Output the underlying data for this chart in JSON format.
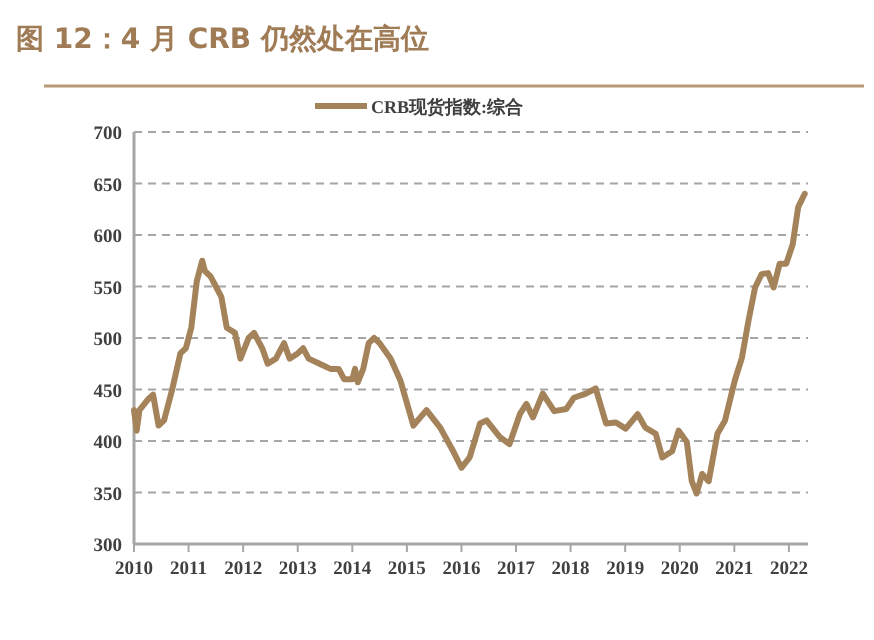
{
  "chart_data": {
    "type": "line",
    "title": "图 12：4 月 CRB 仍然处在高位",
    "xlim": [
      2010,
      2022.35
    ],
    "xticks": [
      2010,
      2011,
      2012,
      2013,
      2014,
      2015,
      2016,
      2017,
      2018,
      2019,
      2020,
      2021,
      2022
    ],
    "ylim": [
      300,
      700
    ],
    "yticks": [
      300,
      350,
      400,
      450,
      500,
      550,
      600,
      650,
      700
    ],
    "grid": "y",
    "legend": "top",
    "line_style": "solid",
    "marker": "none",
    "series": [
      {
        "name": "CRB现货指数:综合",
        "color": "#a5835a",
        "x": [
          2010.0,
          2010.05,
          2010.1,
          2010.25,
          2010.35,
          2010.45,
          2010.55,
          2010.7,
          2010.85,
          2010.95,
          2011.05,
          2011.15,
          2011.25,
          2011.3,
          2011.4,
          2011.5,
          2011.6,
          2011.7,
          2011.85,
          2011.95,
          2012.1,
          2012.2,
          2012.35,
          2012.45,
          2012.6,
          2012.75,
          2012.85,
          2013.0,
          2013.1,
          2013.2,
          2013.4,
          2013.6,
          2013.75,
          2013.85,
          2014.0,
          2014.05,
          2014.1,
          2014.2,
          2014.3,
          2014.4,
          2014.5,
          2014.7,
          2014.88,
          2015.12,
          2015.36,
          2015.61,
          2015.85,
          2016.0,
          2016.15,
          2016.34,
          2016.46,
          2016.7,
          2016.88,
          2017.07,
          2017.19,
          2017.31,
          2017.49,
          2017.7,
          2017.92,
          2018.06,
          2018.28,
          2018.46,
          2018.65,
          2018.83,
          2019.01,
          2019.23,
          2019.37,
          2019.56,
          2019.68,
          2019.86,
          2019.98,
          2020.13,
          2020.22,
          2020.31,
          2020.41,
          2020.53,
          2020.69,
          2020.83,
          2021.01,
          2021.14,
          2021.26,
          2021.38,
          2021.5,
          2021.62,
          2021.72,
          2021.83,
          2021.95,
          2022.07,
          2022.17,
          2022.29
        ],
        "values": [
          430,
          410,
          430,
          440,
          445,
          415,
          420,
          450,
          485,
          490,
          510,
          555,
          575,
          565,
          560,
          550,
          540,
          510,
          505,
          480,
          500,
          505,
          490,
          475,
          480,
          495,
          480,
          485,
          490,
          480,
          475,
          470,
          470,
          460,
          460,
          470,
          457,
          470,
          495,
          500,
          495,
          480,
          459,
          415,
          430,
          413,
          390,
          374,
          384,
          417,
          420,
          404,
          397,
          426,
          436,
          423,
          446,
          429,
          431,
          442,
          446,
          451,
          417,
          418,
          412,
          426,
          413,
          407,
          384,
          390,
          410,
          399,
          361,
          349,
          368,
          361,
          407,
          420,
          459,
          481,
          517,
          549,
          562,
          563,
          549,
          572,
          572,
          591,
          627,
          640
        ]
      }
    ]
  }
}
